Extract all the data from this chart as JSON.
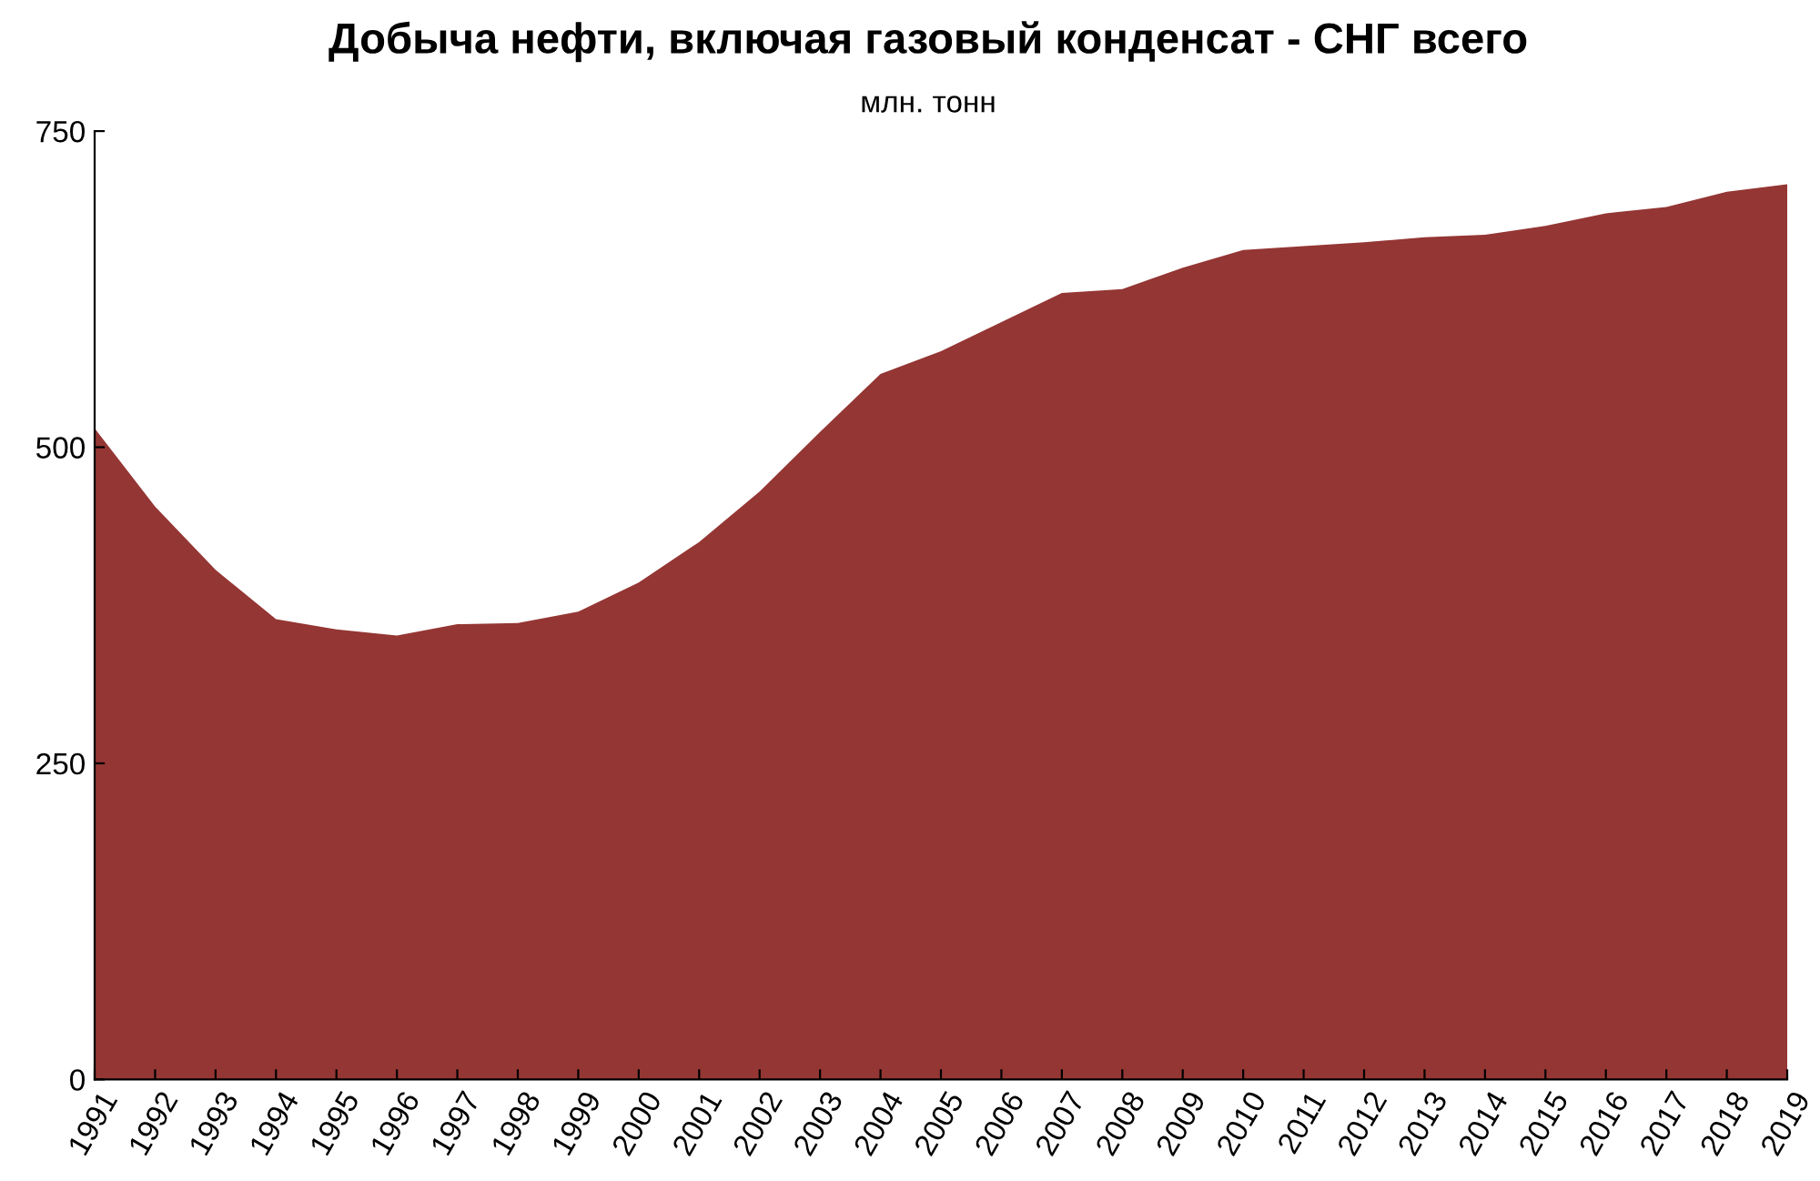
{
  "chart_data": {
    "type": "area",
    "title": "Добыча нефти, включая газовый конденсат - СНГ всего",
    "subtitle": "млн. тонн",
    "categories": [
      "1991",
      "1992",
      "1993",
      "1994",
      "1995",
      "1996",
      "1997",
      "1998",
      "1999",
      "2000",
      "2001",
      "2002",
      "2003",
      "2004",
      "2005",
      "2006",
      "2007",
      "2008",
      "2009",
      "2010",
      "2011",
      "2012",
      "2013",
      "2014",
      "2015",
      "2016",
      "2017",
      "2018",
      "2019"
    ],
    "series": [
      {
        "color": "#943634",
        "values": [
          515,
          453,
          403,
          364,
          356,
          351,
          360,
          361,
          370,
          393,
          425,
          465,
          512,
          558,
          576,
          599,
          622,
          625,
          642,
          656,
          659,
          662,
          666,
          668,
          675,
          685,
          690,
          702,
          708
        ]
      }
    ],
    "ylim": [
      0,
      750
    ],
    "yticks": [
      0,
      250,
      500,
      750
    ],
    "grid": false
  }
}
